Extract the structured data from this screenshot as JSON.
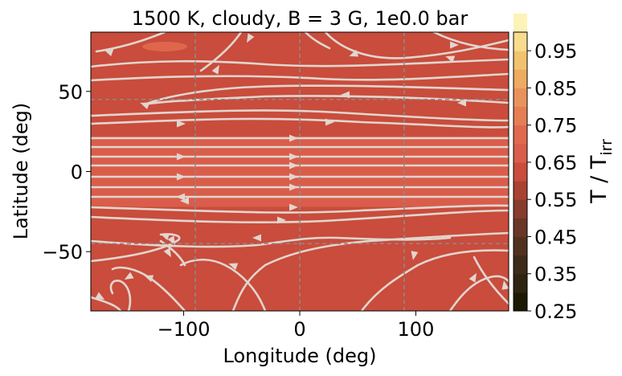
{
  "chart_data": {
    "type": "heatmap",
    "title": "1500 K, cloudy, B = 3 G, 1e0.0 bar",
    "xlabel": "Longitude (deg)",
    "ylabel": "Latitude (deg)",
    "xlim": [
      -180,
      180
    ],
    "ylim": [
      -87,
      87
    ],
    "x_ticks": [
      -100,
      0,
      100
    ],
    "x_tick_labels": [
      "−100",
      "0",
      "100"
    ],
    "y_ticks": [
      -50,
      0,
      50
    ],
    "y_tick_labels": [
      "−50",
      "0",
      "50"
    ],
    "grid": true,
    "grid_lines": {
      "longitude": [
        -90,
        0,
        90
      ],
      "latitude": [
        -45,
        45
      ]
    },
    "colorbar": {
      "label_main": "T / T",
      "label_sub": "irr",
      "range": [
        0.25,
        1.0
      ],
      "step": 0.05,
      "ticks": [
        0.25,
        0.35,
        0.45,
        0.55,
        0.65,
        0.75,
        0.85,
        0.95
      ],
      "tick_labels": [
        "0.25",
        "0.35",
        "0.45",
        "0.55",
        "0.65",
        "0.75",
        "0.85",
        "0.95"
      ],
      "colors": [
        "#1b1a00",
        "#2e2410",
        "#3d2a18",
        "#52301f",
        "#6a3627",
        "#873c2e",
        "#a94232",
        "#c94c3c",
        "#d95d4a",
        "#e0694e",
        "#e47e55",
        "#e9935c",
        "#eeab62",
        "#f2c26f",
        "#f8dc8e",
        "#fdf2b8"
      ]
    },
    "temperature_bands": [
      {
        "lat_range": [
          -87,
          -30
        ],
        "value": 0.63
      },
      {
        "lat_range": [
          -30,
          -22
        ],
        "value": 0.64
      },
      {
        "lat_range": [
          -22,
          -14
        ],
        "value": 0.66
      },
      {
        "lat_range": [
          -14,
          -6
        ],
        "value": 0.68
      },
      {
        "lat_range": [
          -6,
          10
        ],
        "value": 0.7
      },
      {
        "lat_range": [
          10,
          16
        ],
        "value": 0.68
      },
      {
        "lat_range": [
          16,
          22
        ],
        "value": 0.66
      },
      {
        "lat_range": [
          22,
          30
        ],
        "value": 0.64
      },
      {
        "lat_range": [
          30,
          87
        ],
        "value": 0.63
      }
    ],
    "streamline_color": "#e2d6ce"
  }
}
